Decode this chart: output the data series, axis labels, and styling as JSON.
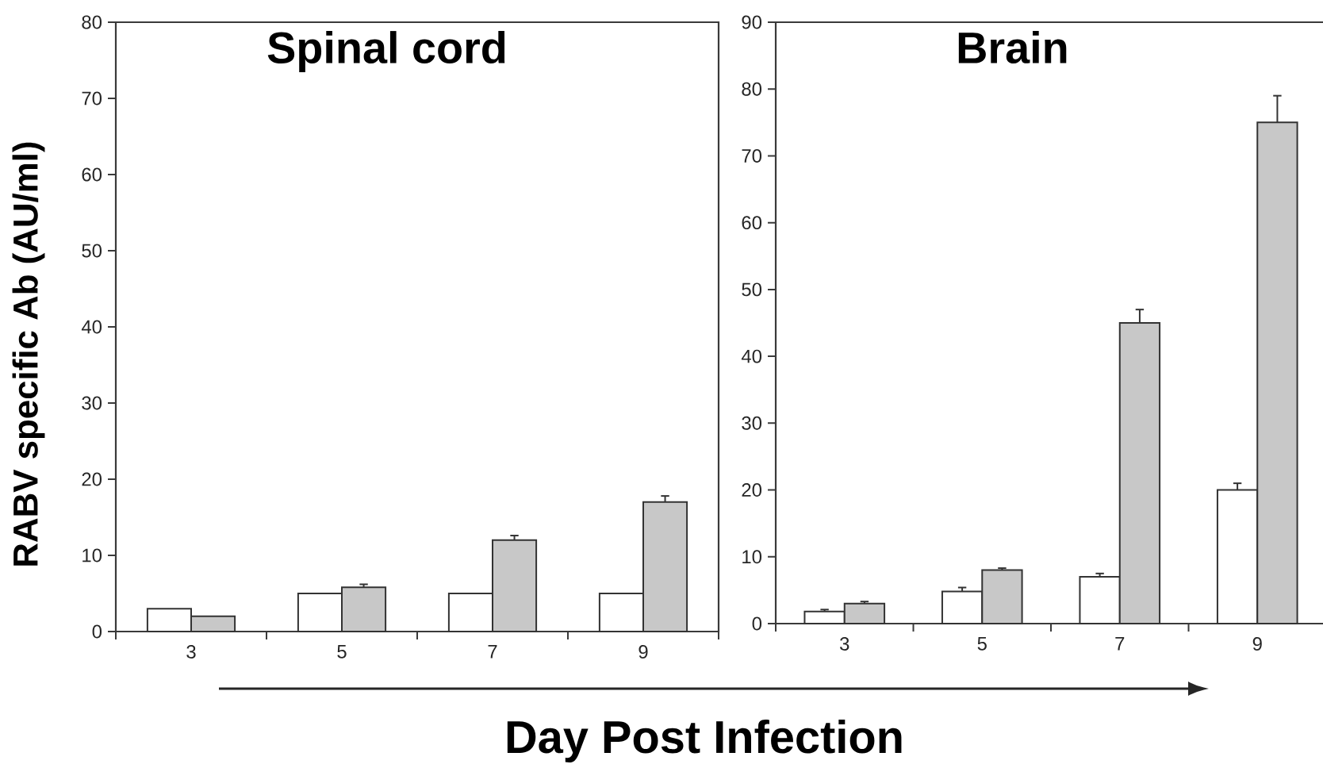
{
  "chart_data": [
    {
      "type": "bar",
      "title": "Spinal cord",
      "ylabel": "RABV specific Ab (AU/ml)",
      "xlabel": "Day Post Infection",
      "categories": [
        "3",
        "5",
        "7",
        "9"
      ],
      "series": [
        {
          "color": "#ffffff",
          "values": [
            3,
            5,
            5,
            5
          ]
        },
        {
          "color": "#c8c8c8",
          "values": [
            2,
            5.8,
            12,
            17
          ],
          "errors": [
            null,
            [
              5.8,
              6.2
            ],
            [
              12,
              12.6
            ],
            [
              17,
              17.8
            ]
          ]
        }
      ],
      "ylim": [
        0,
        80
      ],
      "yticks": [
        0,
        10,
        20,
        30,
        40,
        50,
        60,
        70,
        80
      ]
    },
    {
      "type": "bar",
      "title": "Brain",
      "categories": [
        "3",
        "5",
        "7",
        "9"
      ],
      "series": [
        {
          "color": "#ffffff",
          "values": [
            1.8,
            4.8,
            7,
            20
          ],
          "errors": [
            [
              1.8,
              2.1
            ],
            [
              4.8,
              5.4
            ],
            [
              7,
              7.5
            ],
            [
              20,
              21
            ]
          ]
        },
        {
          "color": "#c8c8c8",
          "values": [
            3,
            8,
            45,
            75
          ],
          "errors": [
            [
              3,
              3.3
            ],
            [
              8,
              8.3
            ],
            [
              45,
              47
            ],
            [
              75,
              79
            ]
          ]
        }
      ],
      "ylim": [
        0,
        90
      ],
      "yticks": [
        0,
        10,
        20,
        30,
        40,
        50,
        60,
        70,
        80,
        90
      ]
    }
  ]
}
